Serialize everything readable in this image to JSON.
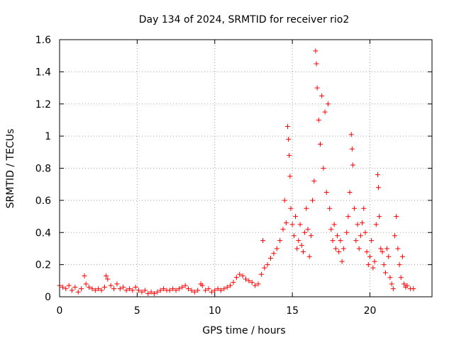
{
  "chart_data": {
    "type": "scatter",
    "title": "Day 134 of 2024, SRMTID for receiver rio2",
    "xlabel": "GPS time / hours",
    "ylabel": "SRMTID / TECUs",
    "xlim": [
      0,
      24
    ],
    "ylim": [
      0,
      1.6
    ],
    "xticks": [
      0,
      5,
      10,
      15,
      20
    ],
    "xtick_labels": [
      "0",
      "5",
      "10",
      "15",
      "20"
    ],
    "yticks": [
      0,
      0.2,
      0.4,
      0.6,
      0.8,
      1.0,
      1.2,
      1.4,
      1.6
    ],
    "ytick_labels": [
      "0",
      "0.2",
      "0.4",
      "0.6",
      "0.8",
      "1",
      "1.2",
      "1.4",
      "1.6"
    ],
    "grid": true,
    "marker": "+",
    "color": "#ff0000",
    "series": [
      {
        "name": "rio2",
        "points": [
          [
            0.0,
            0.07
          ],
          [
            0.2,
            0.06
          ],
          [
            0.4,
            0.05
          ],
          [
            0.6,
            0.07
          ],
          [
            0.8,
            0.04
          ],
          [
            1.0,
            0.06
          ],
          [
            1.2,
            0.03
          ],
          [
            1.4,
            0.05
          ],
          [
            1.6,
            0.13
          ],
          [
            1.7,
            0.08
          ],
          [
            1.9,
            0.06
          ],
          [
            2.1,
            0.05
          ],
          [
            2.3,
            0.04
          ],
          [
            2.5,
            0.05
          ],
          [
            2.7,
            0.04
          ],
          [
            2.9,
            0.06
          ],
          [
            3.0,
            0.13
          ],
          [
            3.1,
            0.11
          ],
          [
            3.3,
            0.07
          ],
          [
            3.5,
            0.05
          ],
          [
            3.7,
            0.08
          ],
          [
            3.9,
            0.05
          ],
          [
            4.1,
            0.06
          ],
          [
            4.3,
            0.04
          ],
          [
            4.5,
            0.05
          ],
          [
            4.7,
            0.04
          ],
          [
            4.9,
            0.06
          ],
          [
            5.1,
            0.04
          ],
          [
            5.3,
            0.03
          ],
          [
            5.5,
            0.04
          ],
          [
            5.7,
            0.02
          ],
          [
            5.9,
            0.03
          ],
          [
            6.1,
            0.02
          ],
          [
            6.3,
            0.03
          ],
          [
            6.5,
            0.04
          ],
          [
            6.7,
            0.05
          ],
          [
            6.9,
            0.04
          ],
          [
            7.1,
            0.04
          ],
          [
            7.3,
            0.05
          ],
          [
            7.5,
            0.04
          ],
          [
            7.7,
            0.05
          ],
          [
            7.9,
            0.06
          ],
          [
            8.1,
            0.07
          ],
          [
            8.3,
            0.05
          ],
          [
            8.5,
            0.04
          ],
          [
            8.7,
            0.03
          ],
          [
            8.9,
            0.04
          ],
          [
            9.1,
            0.08
          ],
          [
            9.2,
            0.07
          ],
          [
            9.4,
            0.04
          ],
          [
            9.6,
            0.05
          ],
          [
            9.8,
            0.03
          ],
          [
            10.0,
            0.04
          ],
          [
            10.2,
            0.05
          ],
          [
            10.4,
            0.04
          ],
          [
            10.6,
            0.05
          ],
          [
            10.8,
            0.06
          ],
          [
            11.0,
            0.07
          ],
          [
            11.2,
            0.09
          ],
          [
            11.4,
            0.12
          ],
          [
            11.6,
            0.14
          ],
          [
            11.8,
            0.13
          ],
          [
            12.0,
            0.11
          ],
          [
            12.2,
            0.1
          ],
          [
            12.4,
            0.09
          ],
          [
            12.6,
            0.07
          ],
          [
            12.8,
            0.08
          ],
          [
            13.0,
            0.14
          ],
          [
            13.1,
            0.35
          ],
          [
            13.2,
            0.18
          ],
          [
            13.4,
            0.2
          ],
          [
            13.6,
            0.24
          ],
          [
            13.8,
            0.27
          ],
          [
            14.0,
            0.3
          ],
          [
            14.2,
            0.35
          ],
          [
            14.4,
            0.42
          ],
          [
            14.5,
            0.6
          ],
          [
            14.6,
            0.46
          ],
          [
            14.7,
            1.06
          ],
          [
            14.75,
            0.98
          ],
          [
            14.8,
            0.88
          ],
          [
            14.85,
            0.75
          ],
          [
            14.9,
            0.55
          ],
          [
            15.0,
            0.45
          ],
          [
            15.1,
            0.38
          ],
          [
            15.2,
            0.5
          ],
          [
            15.3,
            0.3
          ],
          [
            15.4,
            0.35
          ],
          [
            15.5,
            0.45
          ],
          [
            15.6,
            0.32
          ],
          [
            15.7,
            0.28
          ],
          [
            15.8,
            0.4
          ],
          [
            15.9,
            0.55
          ],
          [
            16.0,
            0.42
          ],
          [
            16.1,
            0.25
          ],
          [
            16.2,
            0.38
          ],
          [
            16.3,
            0.6
          ],
          [
            16.4,
            0.72
          ],
          [
            16.5,
            1.53
          ],
          [
            16.55,
            1.45
          ],
          [
            16.6,
            1.3
          ],
          [
            16.7,
            1.1
          ],
          [
            16.8,
            0.95
          ],
          [
            16.9,
            1.25
          ],
          [
            17.0,
            0.8
          ],
          [
            17.1,
            1.15
          ],
          [
            17.2,
            0.65
          ],
          [
            17.3,
            1.2
          ],
          [
            17.4,
            0.55
          ],
          [
            17.5,
            0.42
          ],
          [
            17.6,
            0.35
          ],
          [
            17.7,
            0.45
          ],
          [
            17.8,
            0.3
          ],
          [
            17.9,
            0.38
          ],
          [
            18.0,
            0.28
          ],
          [
            18.1,
            0.35
          ],
          [
            18.2,
            0.22
          ],
          [
            18.3,
            0.3
          ],
          [
            18.5,
            0.4
          ],
          [
            18.6,
            0.5
          ],
          [
            18.7,
            0.65
          ],
          [
            18.8,
            1.01
          ],
          [
            18.85,
            0.92
          ],
          [
            18.9,
            0.82
          ],
          [
            19.0,
            0.55
          ],
          [
            19.1,
            0.35
          ],
          [
            19.2,
            0.45
          ],
          [
            19.3,
            0.3
          ],
          [
            19.4,
            0.38
          ],
          [
            19.5,
            0.46
          ],
          [
            19.6,
            0.55
          ],
          [
            19.7,
            0.4
          ],
          [
            19.8,
            0.28
          ],
          [
            19.9,
            0.2
          ],
          [
            20.0,
            0.25
          ],
          [
            20.1,
            0.35
          ],
          [
            20.2,
            0.18
          ],
          [
            20.3,
            0.22
          ],
          [
            20.4,
            0.45
          ],
          [
            20.5,
            0.76
          ],
          [
            20.55,
            0.68
          ],
          [
            20.6,
            0.5
          ],
          [
            20.7,
            0.3
          ],
          [
            20.8,
            0.28
          ],
          [
            20.9,
            0.2
          ],
          [
            21.0,
            0.15
          ],
          [
            21.1,
            0.3
          ],
          [
            21.2,
            0.25
          ],
          [
            21.3,
            0.12
          ],
          [
            21.4,
            0.08
          ],
          [
            21.5,
            0.05
          ],
          [
            21.6,
            0.38
          ],
          [
            21.7,
            0.5
          ],
          [
            21.8,
            0.3
          ],
          [
            21.9,
            0.2
          ],
          [
            22.0,
            0.12
          ],
          [
            22.1,
            0.25
          ],
          [
            22.2,
            0.08
          ],
          [
            22.3,
            0.06
          ],
          [
            22.4,
            0.07
          ],
          [
            22.6,
            0.05
          ],
          [
            22.8,
            0.05
          ]
        ]
      }
    ]
  }
}
